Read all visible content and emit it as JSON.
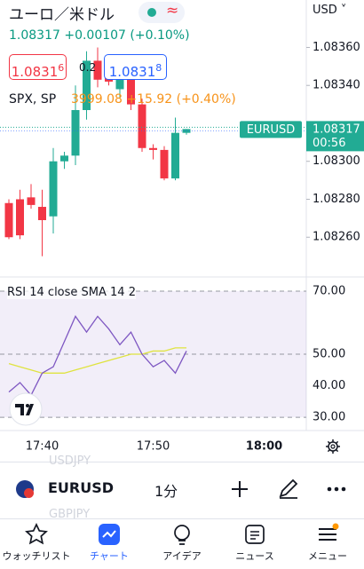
{
  "header": {
    "symbol_title": "ユーロ／米ドル",
    "currency": "USD"
  },
  "quote": {
    "last": "1.08317 +0.00107 (+0.10%)",
    "bid": "1.0831",
    "bid_pip": "6",
    "spread": "0.2",
    "ask": "1.0831",
    "ask_pip": "8"
  },
  "compare": {
    "name": "SPX, SP",
    "quote": "3999.08 +15.92 (+0.40%)"
  },
  "price_label": {
    "symbol": "EURUSD",
    "price": "1.08317",
    "countdown": "00:56"
  },
  "chart_data": [
    {
      "type": "candlestick",
      "categories": [
        null,
        null,
        null,
        "17:40",
        null,
        null,
        null,
        null,
        null,
        null,
        null,
        null,
        null,
        "17:50",
        null,
        null,
        null,
        null,
        null,
        null,
        null,
        null,
        null,
        "18:00"
      ],
      "open": [
        1.08278,
        1.0828,
        1.08281,
        1.08276,
        1.08271,
        1.083,
        1.08303,
        1.08327,
        1.08353,
        1.08348,
        1.08338,
        1.08344,
        1.0833,
        1.08307,
        1.08306,
        1.08291,
        1.08315,
        null,
        null,
        null,
        null,
        null,
        null,
        null
      ],
      "high": [
        1.0828,
        1.08285,
        1.08288,
        1.08285,
        1.08307,
        1.08305,
        1.0834,
        1.08358,
        1.0836,
        1.08356,
        1.08345,
        1.08348,
        1.08333,
        1.08309,
        1.08308,
        1.08323,
        1.08317,
        null,
        null,
        null,
        null,
        null,
        null,
        null
      ],
      "low": [
        1.08259,
        1.08259,
        1.08275,
        1.0825,
        1.08262,
        1.08296,
        1.08298,
        1.08322,
        1.08339,
        1.0834,
        1.08333,
        1.08327,
        1.08305,
        1.08301,
        1.0829,
        1.0829,
        1.08314,
        null,
        null,
        null,
        null,
        null,
        null,
        null
      ],
      "close": [
        1.0826,
        1.08261,
        1.08277,
        1.08269,
        1.083,
        1.08303,
        1.08327,
        1.08353,
        1.08343,
        1.08342,
        1.08344,
        1.0833,
        1.08307,
        1.08306,
        1.08291,
        1.08315,
        1.08317,
        null,
        null,
        null,
        null,
        null,
        null,
        null
      ],
      "up_color": "#22ab94",
      "down_color": "#f23645",
      "ylim": [
        1.0824,
        1.08385
      ],
      "yticks": [
        {
          "value": 1.0836,
          "label": "1.08360"
        },
        {
          "value": 1.0834,
          "label": "1.08340"
        },
        {
          "value": 1.083,
          "label": "1.08300"
        },
        {
          "value": 1.0828,
          "label": "1.08280"
        },
        {
          "value": 1.0826,
          "label": "1.08260"
        }
      ]
    },
    {
      "type": "line",
      "title": "RSI 14 close SMA 14 2",
      "series": [
        {
          "color": "#7e57c2",
          "values": [
            38,
            41,
            37,
            44,
            46,
            54,
            62,
            57,
            62,
            58,
            53,
            57,
            50,
            46,
            48,
            44,
            51,
            null,
            null,
            null,
            null,
            null,
            null,
            null
          ]
        },
        {
          "color": "#dfe33f",
          "values": [
            47,
            46,
            45,
            44,
            44,
            44,
            45,
            46,
            47,
            48,
            49,
            50,
            50,
            51,
            51,
            52,
            52,
            null,
            null,
            null,
            null,
            null,
            null,
            null
          ]
        }
      ],
      "ylim": [
        25.8,
        72.8
      ],
      "yticks": [
        {
          "value": 70,
          "label": "70.00"
        },
        {
          "value": 50,
          "label": "50.00"
        },
        {
          "value": 40,
          "label": "40.00"
        },
        {
          "value": 30,
          "label": "30.00"
        }
      ]
    }
  ],
  "toolbar": {
    "prev_symbol": "USDJPY",
    "symbol": "EURUSD",
    "interval": "1分",
    "next_symbol": "GBPJPY"
  },
  "nav": [
    "ウォッチリスト",
    "チャート",
    "アイデア",
    "ニュース",
    "メニュー"
  ]
}
